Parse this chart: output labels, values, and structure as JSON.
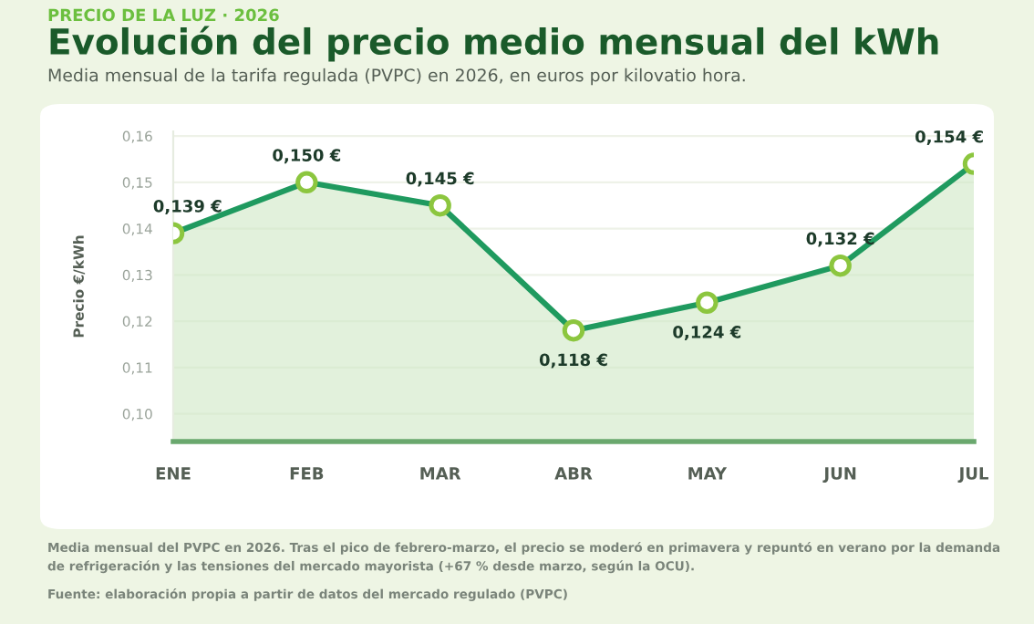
{
  "chart_data": {
    "type": "area",
    "title": "Evolución del precio medio mensual del kWh",
    "subtitle": "Media mensual de la tarifa regulada (PVPC) en 2026, en euros por kilovatio hora.",
    "ylabel": "Precio €/kWh",
    "annotations": [
      "PRECIO DE LA LUZ · 2026",
      "Media mensual del PVPC en 2026. Tras el pico de febrero-marzo, el precio se moderó en primavera y repuntó en verano por la demanda\nde refrigeración y las tensiones del mercado mayorista (+67 % desde marzo, según la OCU).",
      "Fuente: elaboración propia a partir de datos del mercado regulado (PVPC)"
    ],
    "categories": [
      "ENE",
      "FEB",
      "MAR",
      "ABR",
      "MAY",
      "JUN",
      "JUL"
    ],
    "series": [
      {
        "color": "#1f9a5f",
        "values": [
          0.139,
          0.15,
          0.145,
          0.118,
          0.124,
          0.132,
          0.154
        ],
        "value_labels": [
          "0,139 €",
          "0,150 €",
          "0,145 €",
          "0,118 €",
          "0,124 €",
          "0,132 €",
          "0,154 €"
        ]
      }
    ],
    "ylim": [
      0.094,
      0.161
    ],
    "yticks": [
      {
        "value": 0.1,
        "label": "0,10"
      },
      {
        "value": 0.11,
        "label": "0,11"
      },
      {
        "value": 0.12,
        "label": "0,12"
      },
      {
        "value": 0.13,
        "label": "0,13"
      },
      {
        "value": 0.14,
        "label": "0,14"
      },
      {
        "value": 0.15,
        "label": "0,15"
      },
      {
        "value": 0.16,
        "label": "0,16"
      }
    ],
    "grid": "y",
    "marker": "circle",
    "line_style": "solid",
    "legend": false
  }
}
